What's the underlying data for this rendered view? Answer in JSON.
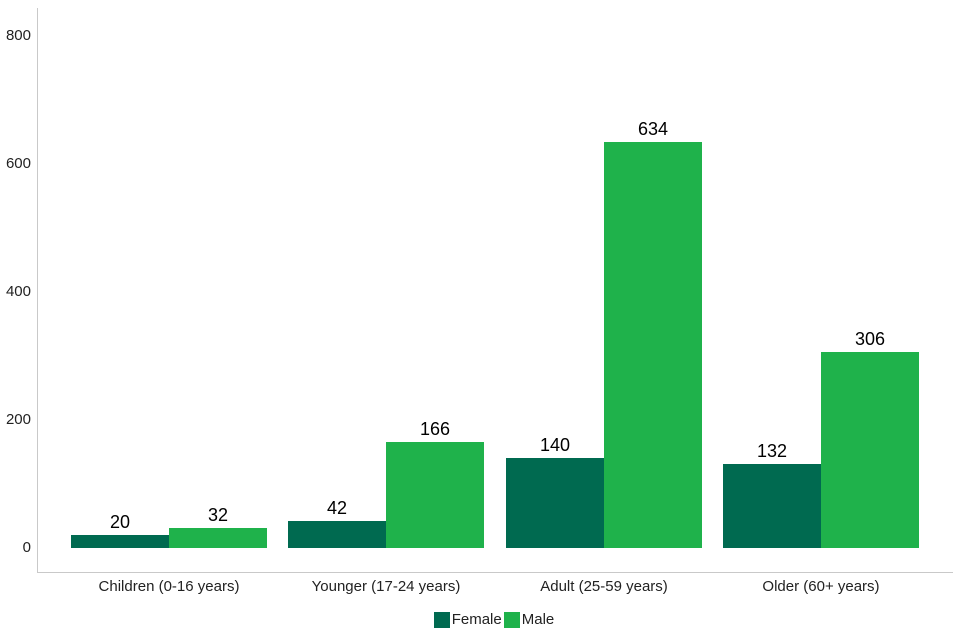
{
  "chart_data": {
    "type": "bar",
    "title": "",
    "categories": [
      "Children (0-16 years)",
      "Younger (17-24 years)",
      "Adult (25-59 years)",
      "Older (60+ years)"
    ],
    "series": [
      {
        "name": "Female",
        "color": "#006A50",
        "values": [
          20,
          42,
          140,
          132
        ]
      },
      {
        "name": "Male",
        "color": "#1FB24B",
        "values": [
          32,
          166,
          634,
          306
        ]
      }
    ],
    "y_axis": {
      "ticks": [
        0,
        200,
        400,
        600,
        800
      ],
      "min": 0,
      "max": 800
    },
    "xlabel": "",
    "ylabel": "",
    "grid": false,
    "bar_value_labels": true,
    "legend_position": "bottom"
  },
  "colors": {
    "background": "#ffffff",
    "axis_line": "#c9c9c9",
    "tick_text": "#222222",
    "value_text": "#000000"
  }
}
